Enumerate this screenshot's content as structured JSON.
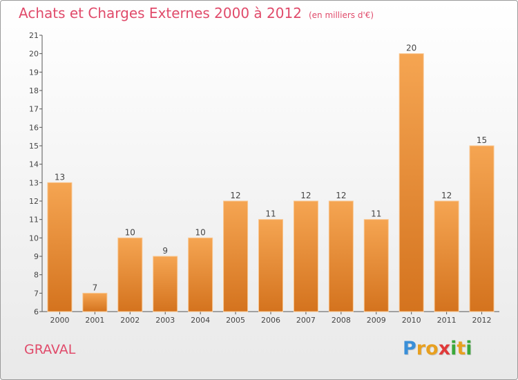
{
  "title": "Achats et Charges Externes 2000 à 2012",
  "unit_note": "(en milliers d'€)",
  "location": "GRAVAL",
  "logo": {
    "letters": [
      "P",
      "r",
      "o",
      "x",
      "i",
      "t",
      "i"
    ],
    "colors": [
      "#3a8fd8",
      "#e8a020",
      "#e8a020",
      "#e03a3a",
      "#3aa83a",
      "#e8a020",
      "#3aa83a"
    ]
  },
  "colors": {
    "bar_top": "#f5a552",
    "bar_bottom": "#d4731e",
    "title": "#e04a6a"
  },
  "chart_data": {
    "type": "bar",
    "title": "Achats et Charges Externes 2000 à 2012",
    "categories": [
      "2000",
      "2001",
      "2002",
      "2003",
      "2004",
      "2005",
      "2006",
      "2007",
      "2008",
      "2009",
      "2010",
      "2011",
      "2012"
    ],
    "values": [
      13,
      7,
      10,
      9,
      10,
      12,
      11,
      12,
      12,
      11,
      20,
      12,
      15
    ],
    "ylim": [
      6,
      21
    ],
    "yticks": [
      6,
      7,
      8,
      9,
      10,
      11,
      12,
      13,
      14,
      15,
      16,
      17,
      18,
      19,
      20,
      21
    ],
    "xlabel": "",
    "ylabel": "",
    "grid": false,
    "legend": "none"
  }
}
